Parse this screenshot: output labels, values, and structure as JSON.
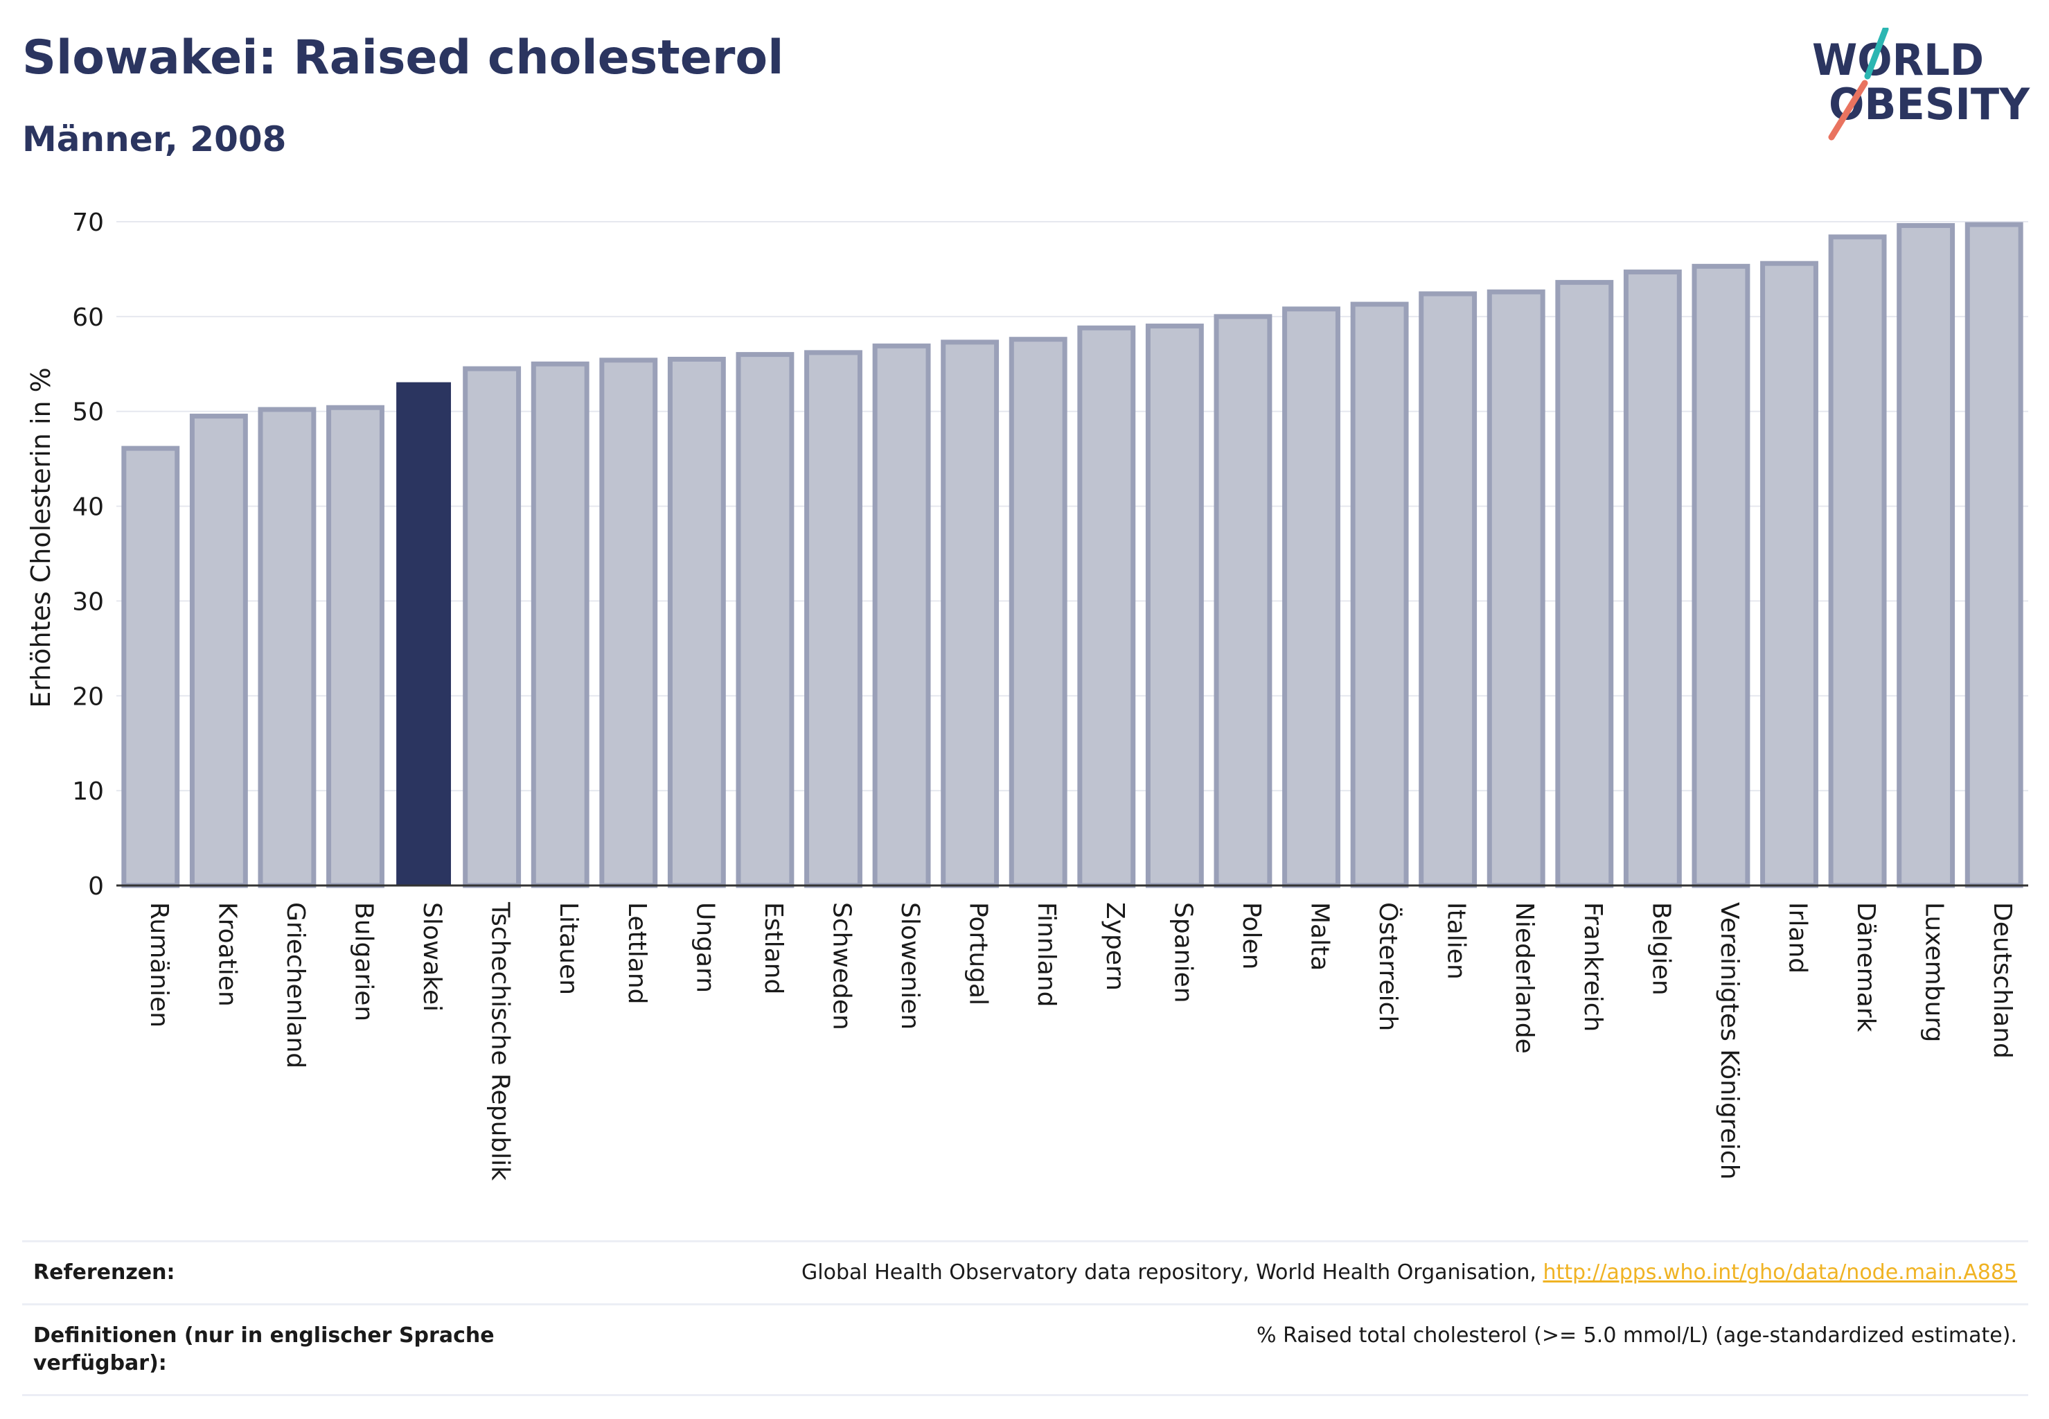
{
  "header": {
    "title": "Slowakei: Raised cholesterol",
    "subtitle": "Männer, 2008"
  },
  "logo": {
    "line1": "WORLD",
    "line2": "OBESITY"
  },
  "colors": {
    "highlight": "#2b3560",
    "bar_fill": "#bfc3d0",
    "bar_stroke": "#9aa0b8",
    "link": "#f0b323",
    "text": "#2b3560"
  },
  "chart_data": {
    "type": "bar",
    "xlabel": "",
    "ylabel": "Erhöhtes Cholesterin in %",
    "ylim": [
      0,
      70
    ],
    "yticks": [
      0,
      10,
      20,
      30,
      40,
      50,
      60,
      70
    ],
    "grid": true,
    "highlight": "Slowakei",
    "categories": [
      "Rumänien",
      "Kroatien",
      "Griechenland",
      "Bulgarien",
      "Slowakei",
      "Tschechische Republik",
      "Litauen",
      "Lettland",
      "Ungarn",
      "Estland",
      "Schweden",
      "Slowenien",
      "Portugal",
      "Finnland",
      "Zypern",
      "Spanien",
      "Polen",
      "Malta",
      "Österreich",
      "Italien",
      "Niederlande",
      "Frankreich",
      "Belgien",
      "Vereinigtes Königreich",
      "Irland",
      "Dänemark",
      "Luxemburg",
      "Deutschland"
    ],
    "values": [
      46.1,
      49.5,
      50.2,
      50.4,
      53.0,
      54.5,
      55.0,
      55.4,
      55.5,
      56.0,
      56.2,
      56.9,
      57.3,
      57.6,
      58.8,
      59.0,
      60.0,
      60.8,
      61.3,
      62.4,
      62.6,
      63.6,
      64.7,
      65.3,
      65.6,
      68.4,
      69.6,
      69.7
    ]
  },
  "references": {
    "ref_label": "Referenzen:",
    "ref_text": "Global Health Observatory data repository, World Health Organisation, ",
    "ref_link": "http://apps.who.int/gho/data/node.main.A885",
    "def_label": "Definitionen (nur in englischer Sprache verfügbar):",
    "def_text": "% Raised total cholesterol (>= 5.0 mmol/L) (age-standardized estimate)."
  }
}
